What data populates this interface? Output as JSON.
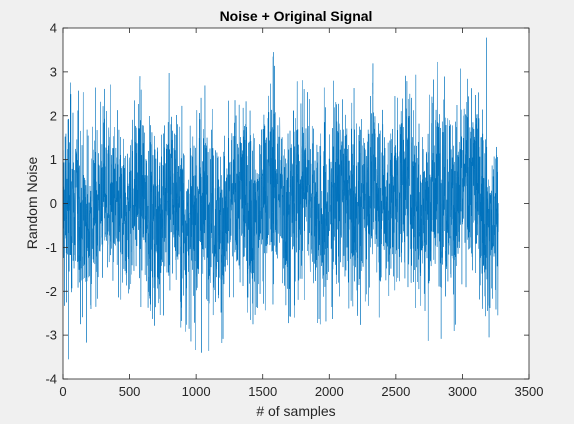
{
  "chart_data": {
    "type": "line",
    "title": "Noise + Original Signal",
    "xlabel": "# of samples",
    "ylabel": "Random Noise",
    "xlim": [
      0,
      3500
    ],
    "ylim": [
      -4,
      4
    ],
    "xticks": [
      0,
      500,
      1000,
      1500,
      2000,
      2500,
      3000,
      3500
    ],
    "yticks": [
      -4,
      -3,
      -2,
      -1,
      0,
      1,
      2,
      3,
      4
    ],
    "grid": false,
    "legend": "none",
    "n_samples": 3270,
    "series_color": "#0072bd",
    "background": "#f0f0f0",
    "axes_color": "#ffffff",
    "series": [
      {
        "x_start": 1,
        "x_step": 1,
        "summary_envelope": {
          "x": [
            0,
            250,
            500,
            750,
            1000,
            1250,
            1500,
            1750,
            2000,
            2250,
            2500,
            2750,
            3000,
            3270
          ],
          "max": [
            3.0,
            2.9,
            2.9,
            3.1,
            2.9,
            2.9,
            3.5,
            3.4,
            3.2,
            3.2,
            3.4,
            3.4,
            3.8,
            2.6
          ],
          "min": [
            -3.55,
            -3.1,
            -3.0,
            -3.2,
            -3.4,
            -3.3,
            -3.2,
            -3.0,
            -3.35,
            -3.0,
            -2.8,
            -3.2,
            -3.0,
            -3.1
          ]
        },
        "notable_points": [
          {
            "x": 40,
            "y": -3.55
          },
          {
            "x": 1040,
            "y": -3.4
          },
          {
            "x": 1580,
            "y": 3.45
          },
          {
            "x": 3180,
            "y": 3.78
          },
          {
            "x": 3200,
            "y": -3.05
          }
        ]
      }
    ]
  }
}
